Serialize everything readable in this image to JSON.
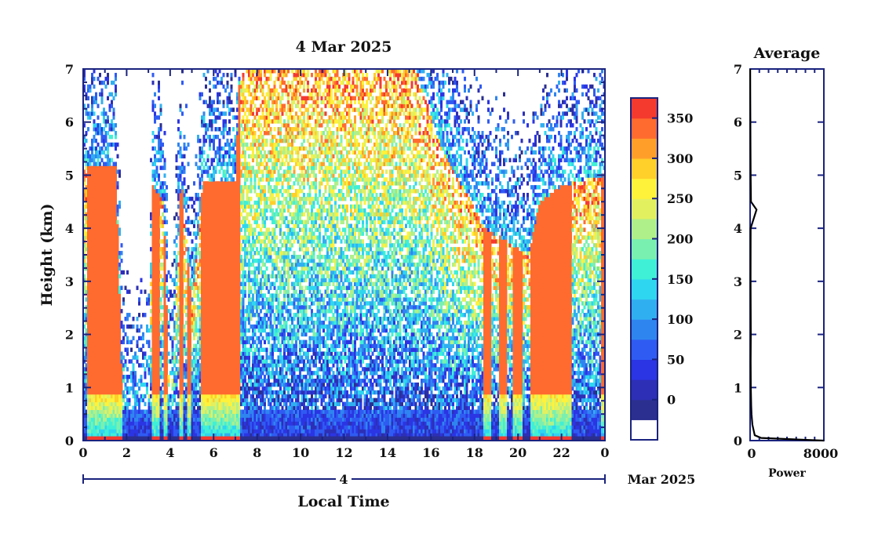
{
  "chart_data": [
    {
      "type": "heatmap",
      "title": "4 Mar 2025",
      "xlabel": "Local Time",
      "ylabel": "Height (km)",
      "x_ticks": [
        "0",
        "2",
        "4",
        "6",
        "8",
        "10",
        "12",
        "14",
        "16",
        "18",
        "20",
        "22",
        "0"
      ],
      "y_ticks": [
        "0",
        "1",
        "2",
        "3",
        "4",
        "5",
        "6",
        "7"
      ],
      "xlim": [
        0,
        24
      ],
      "ylim": [
        0,
        7
      ],
      "date_bar": {
        "day": "4",
        "month_label": "Mar 2025"
      },
      "colorbar": {
        "ticks": [
          "0",
          "50",
          "100",
          "150",
          "200",
          "250",
          "300",
          "350"
        ],
        "levels": [
          -25,
          0,
          25,
          50,
          75,
          100,
          125,
          150,
          175,
          200,
          225,
          250,
          275,
          300,
          325,
          350,
          375
        ],
        "colors": [
          "#ffffff",
          "#2b2f8f",
          "#2d2fb6",
          "#2b35e3",
          "#2f5bf2",
          "#2f85f0",
          "#30aff0",
          "#2fd6f0",
          "#40f0d6",
          "#7af0b0",
          "#b0f08a",
          "#e2f060",
          "#fff23a",
          "#ffcf2a",
          "#ff9f2a",
          "#ff6b2f",
          "#f43a2e"
        ]
      },
      "clear_air_cloud_top_km": [
        [
          0,
          5.2
        ],
        [
          1.5,
          5.2
        ],
        [
          1.8,
          0.9
        ],
        [
          2.1,
          0.5
        ],
        [
          2.6,
          0.4
        ],
        [
          3.0,
          0.6
        ],
        [
          3.2,
          4.8
        ],
        [
          3.7,
          4.5
        ],
        [
          4.0,
          0.2
        ],
        [
          4.5,
          5.0
        ],
        [
          5.0,
          2.5
        ],
        [
          5.5,
          4.9
        ],
        [
          7.0,
          4.9
        ],
        [
          7.2,
          7.0
        ],
        [
          15.3,
          7.0
        ],
        [
          16.5,
          5.5
        ],
        [
          18.5,
          4.0
        ],
        [
          20.5,
          3.5
        ],
        [
          21.0,
          4.5
        ],
        [
          22.0,
          4.8
        ],
        [
          24,
          5.0
        ]
      ],
      "precip_columns": [
        [
          0.2,
          1.8
        ],
        [
          3.2,
          3.5
        ],
        [
          3.7,
          3.85
        ],
        [
          4.4,
          4.6
        ],
        [
          4.8,
          5.0
        ],
        [
          5.4,
          7.2
        ],
        [
          18.4,
          18.8
        ],
        [
          19.1,
          19.5
        ],
        [
          19.8,
          20.2
        ],
        [
          20.6,
          22.5
        ],
        [
          23.8,
          24
        ]
      ]
    },
    {
      "type": "line",
      "title": "Average",
      "xlabel": "Power",
      "ylabel": "",
      "x_ticks": [
        "0",
        "8000"
      ],
      "y_ticks": [
        "0",
        "1",
        "2",
        "3",
        "4",
        "5",
        "6",
        "7"
      ],
      "xlim": [
        0,
        8000
      ],
      "ylim": [
        0,
        7
      ],
      "x": [
        8000,
        1200,
        500,
        250,
        150,
        120,
        100,
        80,
        60,
        80,
        50,
        60,
        700,
        90,
        60,
        40,
        20,
        10
      ],
      "y": [
        0.0,
        0.05,
        0.1,
        0.3,
        0.5,
        0.65,
        0.8,
        1.0,
        1.5,
        2.0,
        3.0,
        4.0,
        4.35,
        4.5,
        5.0,
        5.5,
        6.5,
        7.0
      ]
    }
  ]
}
